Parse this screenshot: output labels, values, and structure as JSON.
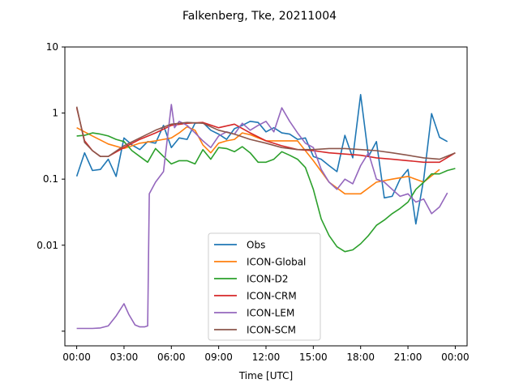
{
  "chart_data": {
    "type": "line",
    "title": "Falkenberg, Tke, 20211004",
    "xlabel": "Time [UTC]",
    "ylabel": "",
    "yscale": "log",
    "ylim": [
      0.0003,
      10
    ],
    "xlim": [
      -0.75,
      24.75
    ],
    "x_unit": "hours UTC",
    "xticks": [
      0,
      3,
      6,
      9,
      12,
      15,
      18,
      21,
      24
    ],
    "xtick_labels": [
      "00:00",
      "03:00",
      "06:00",
      "09:00",
      "12:00",
      "15:00",
      "18:00",
      "21:00",
      "00:00"
    ],
    "yticks": [
      0.0005,
      0.01,
      0.1,
      1,
      10
    ],
    "ytick_labels": [
      "",
      "0.01",
      "0.1",
      "1",
      "10"
    ],
    "legend_position": "lower-center",
    "grid": false,
    "series": [
      {
        "name": "Obs",
        "color": "#1f77b4",
        "x": [
          0,
          0.5,
          1,
          1.5,
          2,
          2.5,
          3,
          3.5,
          4,
          4.5,
          5,
          5.5,
          6,
          6.5,
          7,
          7.5,
          8,
          8.5,
          9,
          9.5,
          10,
          10.5,
          11,
          11.5,
          12,
          12.5,
          13,
          13.5,
          14,
          14.5,
          15,
          15.5,
          16,
          16.5,
          17,
          17.5,
          18,
          18.5,
          19,
          19.5,
          20,
          20.5,
          21,
          21.5,
          22,
          22.5,
          23,
          23.5
        ],
        "y": [
          0.11,
          0.25,
          0.135,
          0.14,
          0.2,
          0.11,
          0.42,
          0.33,
          0.28,
          0.37,
          0.35,
          0.65,
          0.3,
          0.42,
          0.4,
          0.7,
          0.72,
          0.55,
          0.48,
          0.4,
          0.58,
          0.65,
          0.75,
          0.72,
          0.52,
          0.6,
          0.5,
          0.48,
          0.4,
          0.42,
          0.22,
          0.2,
          0.16,
          0.13,
          0.46,
          0.21,
          1.9,
          0.22,
          0.37,
          0.052,
          0.055,
          0.1,
          0.14,
          0.021,
          0.1,
          0.98,
          0.43,
          0.37
        ]
      },
      {
        "name": "ICON-Global",
        "color": "#ff7f0e",
        "x": [
          0,
          1,
          2,
          3,
          4,
          5,
          6,
          6.5,
          7,
          7.5,
          8,
          8.5,
          9,
          9.5,
          10,
          10.5,
          11,
          11.5,
          12,
          13,
          14,
          15,
          16,
          17,
          18,
          19,
          20,
          21,
          22,
          23
        ],
        "y": [
          0.6,
          0.45,
          0.34,
          0.29,
          0.35,
          0.38,
          0.42,
          0.5,
          0.62,
          0.55,
          0.33,
          0.25,
          0.35,
          0.38,
          0.4,
          0.5,
          0.47,
          0.42,
          0.38,
          0.38,
          0.38,
          0.19,
          0.09,
          0.06,
          0.06,
          0.09,
          0.1,
          0.11,
          0.09,
          0.14
        ]
      },
      {
        "name": "ICON-D2",
        "color": "#2ca02c",
        "x": [
          0,
          0.5,
          1,
          1.5,
          2,
          2.5,
          3,
          3.5,
          4,
          4.5,
          5,
          5.5,
          6,
          6.5,
          7,
          7.5,
          8,
          8.5,
          9,
          9.5,
          10,
          10.5,
          11,
          11.5,
          12,
          12.5,
          13,
          13.5,
          14,
          14.5,
          15,
          15.5,
          16,
          16.5,
          17,
          17.5,
          18,
          18.5,
          19,
          19.5,
          20,
          20.5,
          21,
          21.5,
          22,
          22.5,
          23,
          23.5,
          24
        ],
        "y": [
          0.45,
          0.46,
          0.5,
          0.48,
          0.45,
          0.4,
          0.37,
          0.27,
          0.22,
          0.18,
          0.29,
          0.22,
          0.17,
          0.19,
          0.19,
          0.17,
          0.28,
          0.2,
          0.3,
          0.29,
          0.26,
          0.31,
          0.25,
          0.18,
          0.18,
          0.2,
          0.26,
          0.23,
          0.2,
          0.15,
          0.07,
          0.025,
          0.014,
          0.0095,
          0.008,
          0.0085,
          0.0105,
          0.014,
          0.02,
          0.024,
          0.03,
          0.036,
          0.045,
          0.07,
          0.09,
          0.12,
          0.12,
          0.135,
          0.145
        ]
      },
      {
        "name": "ICON-CRM",
        "color": "#d62728",
        "x": [
          0,
          0.5,
          1,
          1.5,
          2,
          3,
          4,
          5,
          6,
          7,
          8,
          9,
          10,
          11,
          12,
          13,
          14,
          15,
          16,
          17,
          18,
          19,
          20,
          21,
          22,
          23,
          24
        ],
        "y": [
          1.2,
          0.38,
          0.27,
          0.22,
          0.22,
          0.3,
          0.4,
          0.5,
          0.65,
          0.7,
          0.72,
          0.6,
          0.68,
          0.5,
          0.38,
          0.32,
          0.28,
          0.27,
          0.25,
          0.24,
          0.23,
          0.21,
          0.2,
          0.19,
          0.18,
          0.18,
          0.25
        ]
      },
      {
        "name": "ICON-LEM",
        "color": "#9467bd",
        "x": [
          0,
          1,
          1.5,
          2,
          2.5,
          3,
          3.3,
          3.7,
          4,
          4.3,
          4.5,
          4.6,
          5,
          5.5,
          6,
          6.2,
          6.5,
          7,
          7.5,
          8,
          8.5,
          9,
          9.5,
          10,
          10.5,
          11,
          11.5,
          12,
          12.5,
          13,
          13.5,
          14,
          14.5,
          15,
          15.5,
          16,
          16.5,
          17,
          17.5,
          18,
          18.5,
          19,
          19.5,
          20,
          20.5,
          21,
          21.5,
          22,
          22.5,
          23,
          23.5
        ],
        "y": [
          0.00055,
          0.00055,
          0.00056,
          0.0006,
          0.00085,
          0.0013,
          0.0009,
          0.00062,
          0.00058,
          0.00058,
          0.0006,
          0.06,
          0.09,
          0.13,
          1.35,
          0.6,
          0.75,
          0.65,
          0.5,
          0.38,
          0.3,
          0.45,
          0.52,
          0.48,
          0.7,
          0.55,
          0.65,
          0.75,
          0.52,
          1.2,
          0.75,
          0.5,
          0.35,
          0.3,
          0.14,
          0.09,
          0.07,
          0.1,
          0.085,
          0.16,
          0.25,
          0.1,
          0.09,
          0.07,
          0.055,
          0.06,
          0.045,
          0.05,
          0.03,
          0.038,
          0.062
        ]
      },
      {
        "name": "ICON-SCM",
        "color": "#8c564b",
        "x": [
          0,
          0.5,
          1,
          1.5,
          2,
          3,
          4,
          5,
          6,
          7,
          8,
          9,
          10,
          11,
          12,
          13,
          14,
          15,
          16,
          17,
          18,
          19,
          20,
          21,
          22,
          23,
          24
        ],
        "y": [
          1.25,
          0.36,
          0.27,
          0.22,
          0.22,
          0.32,
          0.42,
          0.55,
          0.68,
          0.72,
          0.7,
          0.55,
          0.48,
          0.4,
          0.35,
          0.3,
          0.28,
          0.28,
          0.29,
          0.29,
          0.28,
          0.27,
          0.25,
          0.23,
          0.21,
          0.2,
          0.25
        ]
      }
    ]
  }
}
